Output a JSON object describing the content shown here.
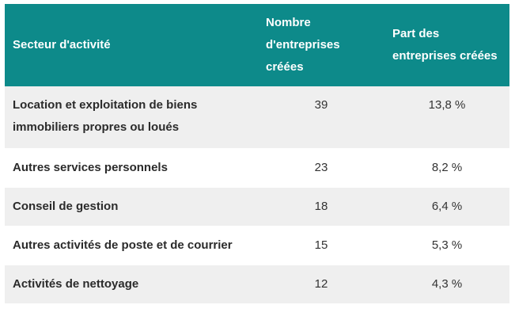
{
  "table": {
    "headers": {
      "sector": "Secteur d'activité",
      "count_line1": "Nombre",
      "count_line2": "d'entreprises",
      "count_line3": "créées",
      "share_line1": "Part des",
      "share_line2": "entreprises créées"
    },
    "rows": [
      {
        "sector_line1": "Location et exploitation de biens",
        "sector_line2": "immobiliers propres ou loués",
        "count": "39",
        "share": "13,8 %"
      },
      {
        "sector_line1": "Autres services personnels",
        "count": "23",
        "share": "8,2 %"
      },
      {
        "sector_line1": "Conseil de gestion",
        "count": "18",
        "share": "6,4 %"
      },
      {
        "sector_line1": "Autres activités de poste et de courrier",
        "count": "15",
        "share": "5,3 %"
      },
      {
        "sector_line1": "Activités de nettoyage",
        "count": "12",
        "share": "4,3 %"
      }
    ]
  },
  "colors": {
    "header_bg": "#0d8a8a",
    "stripe_bg": "#efefef"
  }
}
